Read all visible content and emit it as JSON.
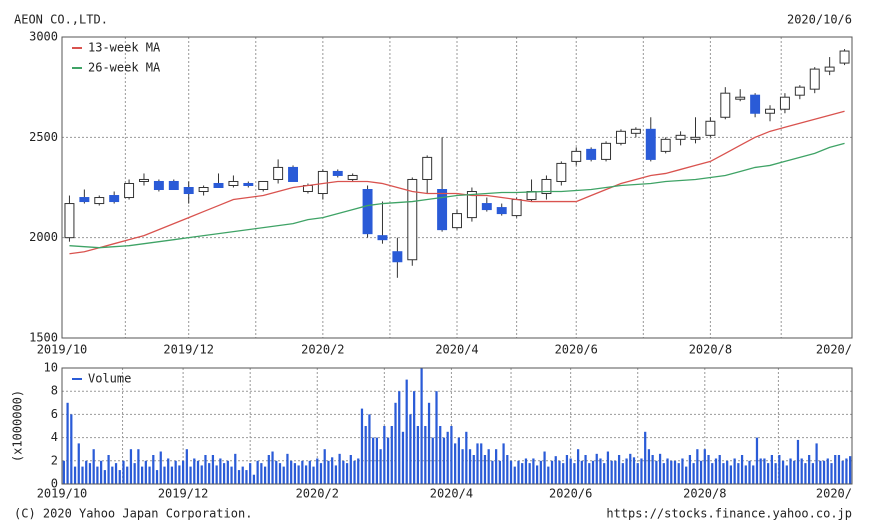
{
  "header": {
    "company": "AEON CO.,LTD.",
    "date": "2020/10/6"
  },
  "footer": {
    "copyright": "(C) 2020 Yahoo Japan Corporation.",
    "url": "https://stocks.finance.yahoo.co.jp"
  },
  "chart_data": [
    {
      "type": "candlestick",
      "categories": [
        "2019/10",
        null,
        null,
        null,
        null,
        null,
        null,
        null,
        "2019/12",
        null,
        null,
        null,
        null,
        null,
        null,
        null,
        null,
        "2020/2",
        null,
        null,
        null,
        null,
        null,
        null,
        null,
        null,
        "2020/4",
        null,
        null,
        null,
        null,
        null,
        null,
        null,
        "2020/6",
        null,
        null,
        null,
        null,
        null,
        null,
        null,
        null,
        "2020/8",
        null,
        null,
        null,
        null,
        null,
        null,
        null,
        null,
        "2020/"
      ],
      "open": [
        2000,
        2200,
        2170,
        2210,
        2200,
        2280,
        2280,
        2280,
        2250,
        2230,
        2270,
        2260,
        2270,
        2240,
        2290,
        2350,
        2230,
        2220,
        2330,
        2290,
        2240,
        2010,
        1930,
        1890,
        2290,
        2240,
        2050,
        2100,
        2170,
        2150,
        2110,
        2190,
        2220,
        2280,
        2380,
        2440,
        2390,
        2470,
        2520,
        2540,
        2430,
        2490,
        2490,
        2510,
        2600,
        2690,
        2710,
        2620,
        2640,
        2710,
        2740,
        2830,
        2870
      ],
      "high": [
        2210,
        2240,
        2210,
        2230,
        2290,
        2320,
        2290,
        2290,
        2280,
        2260,
        2320,
        2310,
        2280,
        2280,
        2390,
        2360,
        2270,
        2340,
        2340,
        2320,
        2260,
        2180,
        2000,
        2300,
        2410,
        2500,
        2140,
        2250,
        2200,
        2170,
        2200,
        2290,
        2310,
        2380,
        2450,
        2450,
        2480,
        2540,
        2550,
        2600,
        2500,
        2530,
        2600,
        2600,
        2750,
        2740,
        2720,
        2660,
        2720,
        2760,
        2850,
        2900,
        2940
      ],
      "low": [
        1980,
        2170,
        2160,
        2170,
        2190,
        2260,
        2230,
        2240,
        2170,
        2210,
        2250,
        2250,
        2250,
        2230,
        2270,
        2280,
        2220,
        2190,
        2300,
        2280,
        2000,
        1970,
        1800,
        1860,
        2220,
        2030,
        2040,
        2080,
        2130,
        2110,
        2100,
        2180,
        2190,
        2260,
        2360,
        2380,
        2380,
        2460,
        2500,
        2380,
        2420,
        2460,
        2470,
        2500,
        2590,
        2680,
        2600,
        2580,
        2620,
        2690,
        2720,
        2810,
        2860
      ],
      "close": [
        2170,
        2180,
        2200,
        2180,
        2270,
        2290,
        2240,
        2240,
        2220,
        2250,
        2250,
        2280,
        2260,
        2280,
        2350,
        2280,
        2260,
        2330,
        2310,
        2310,
        2020,
        1990,
        1880,
        2290,
        2400,
        2040,
        2120,
        2230,
        2140,
        2120,
        2190,
        2230,
        2290,
        2370,
        2430,
        2390,
        2470,
        2530,
        2540,
        2390,
        2490,
        2510,
        2500,
        2580,
        2720,
        2700,
        2620,
        2640,
        2700,
        2750,
        2840,
        2850,
        2930
      ],
      "up_color": "#ffffff",
      "down_color": "#2a5bd7",
      "outline_color": "#333333",
      "series": [
        {
          "name": "13-week MA",
          "color": "#d9534f",
          "values": [
            1920,
            1930,
            1950,
            1970,
            1990,
            2010,
            2040,
            2070,
            2100,
            2130,
            2160,
            2190,
            2200,
            2210,
            2230,
            2250,
            2260,
            2270,
            2280,
            2280,
            2280,
            2270,
            2250,
            2230,
            2220,
            2220,
            2220,
            2210,
            2210,
            2200,
            2190,
            2180,
            2180,
            2180,
            2180,
            2210,
            2240,
            2270,
            2290,
            2310,
            2320,
            2340,
            2360,
            2380,
            2420,
            2460,
            2500,
            2530,
            2550,
            2570,
            2590,
            2610,
            2630
          ]
        },
        {
          "name": "26-week MA",
          "color": "#3fa366",
          "values": [
            1960,
            1955,
            1950,
            1955,
            1960,
            1970,
            1980,
            1990,
            2000,
            2010,
            2020,
            2030,
            2040,
            2050,
            2060,
            2070,
            2090,
            2100,
            2120,
            2140,
            2160,
            2170,
            2175,
            2180,
            2190,
            2200,
            2210,
            2215,
            2220,
            2225,
            2225,
            2228,
            2230,
            2230,
            2235,
            2240,
            2250,
            2260,
            2265,
            2270,
            2280,
            2285,
            2290,
            2300,
            2310,
            2330,
            2350,
            2360,
            2380,
            2400,
            2420,
            2450,
            2470
          ]
        }
      ],
      "ylim": [
        1500,
        3000
      ],
      "yticks": [
        1500,
        2000,
        2500,
        3000
      ],
      "grid": true
    },
    {
      "type": "bar",
      "categories": [
        "2019/10",
        null,
        null,
        null,
        null,
        null,
        null,
        null,
        null,
        null,
        null,
        null,
        null,
        null,
        null,
        null,
        null,
        null,
        null,
        null,
        null,
        null,
        null,
        null,
        null,
        null,
        null,
        null,
        null,
        null,
        null,
        null,
        "2019/12",
        null,
        null,
        null,
        null,
        null,
        null,
        null,
        null,
        null,
        null,
        null,
        null,
        null,
        null,
        null,
        null,
        null,
        null,
        null,
        null,
        null,
        null,
        null,
        null,
        null,
        null,
        null,
        null,
        null,
        null,
        null,
        null,
        null,
        null,
        null,
        "2020/2",
        null,
        null,
        null,
        null,
        null,
        null,
        null,
        null,
        null,
        null,
        null,
        null,
        null,
        null,
        null,
        null,
        null,
        null,
        null,
        null,
        null,
        null,
        null,
        null,
        null,
        null,
        null,
        null,
        null,
        null,
        null,
        null,
        null,
        null,
        null,
        "2020/4",
        null,
        null,
        null,
        null,
        null,
        null,
        null,
        null,
        null,
        null,
        null,
        null,
        null,
        null,
        null,
        null,
        null,
        null,
        null,
        null,
        null,
        null,
        null,
        null,
        null,
        null,
        null,
        null,
        null,
        null,
        null,
        "2020/6",
        null,
        null,
        null,
        null,
        null,
        null,
        null,
        null,
        null,
        null,
        null,
        null,
        null,
        null,
        null,
        null,
        null,
        null,
        null,
        null,
        null,
        null,
        null,
        null,
        null,
        null,
        null,
        null,
        null,
        null,
        null,
        null,
        null,
        null,
        null,
        "2020/8",
        null,
        null,
        null,
        null,
        null,
        null,
        null,
        null,
        null,
        null,
        null,
        null,
        null,
        null,
        null,
        null,
        null,
        null,
        null,
        null,
        null,
        null,
        null,
        null,
        null,
        null,
        null,
        null,
        null,
        null,
        null,
        null,
        null,
        null,
        null,
        "2020/",
        null,
        null,
        null
      ],
      "series": [
        {
          "name": "Volume",
          "color": "#2a5bd7",
          "values": [
            2,
            7,
            6,
            1.5,
            3.5,
            1.5,
            2,
            1.8,
            3,
            1.5,
            2,
            1.2,
            2.5,
            1.5,
            1.8,
            1.2,
            2,
            1.5,
            3,
            1.8,
            3,
            1.5,
            2,
            1.5,
            2.5,
            1.2,
            2.8,
            1.5,
            2.2,
            1.5,
            2,
            1.6,
            2,
            3,
            1.5,
            2.2,
            2,
            1.6,
            2.5,
            1.8,
            2.5,
            1.6,
            2.2,
            1.8,
            2,
            1.5,
            2.6,
            1.2,
            1.5,
            1.2,
            1.8,
            0.8,
            2,
            1.8,
            1.5,
            2.5,
            2.8,
            2,
            1.8,
            1.5,
            2.6,
            2,
            1.8,
            1.6,
            2,
            1.6,
            2,
            1.5,
            2.2,
            1.8,
            3,
            2,
            2.3,
            1.6,
            2.6,
            2,
            1.8,
            2.5,
            2,
            2.2,
            6.5,
            5,
            6,
            4,
            4,
            3,
            5,
            4,
            5,
            7,
            8,
            4.5,
            9,
            6,
            8,
            5,
            10,
            5,
            7,
            4,
            8,
            5,
            4,
            4.5,
            5,
            3.5,
            4,
            3,
            4.5,
            3,
            2.5,
            3.5,
            3.5,
            2.5,
            3,
            2,
            3,
            2,
            3.5,
            2.5,
            2,
            1.5,
            2,
            1.8,
            2.2,
            1.8,
            2.2,
            1.6,
            2,
            2.8,
            1.5,
            2,
            2.4,
            2,
            1.8,
            2.5,
            2.2,
            1.8,
            3,
            2,
            2.5,
            1.8,
            2,
            2.6,
            2.2,
            1.8,
            2.8,
            2,
            2,
            2.5,
            1.8,
            2.2,
            2.6,
            2.3,
            1.8,
            2.2,
            4.5,
            3,
            2.5,
            2,
            2.6,
            1.8,
            2.2,
            2,
            2,
            1.8,
            2.2,
            1.5,
            2.5,
            1.8,
            3,
            2,
            3,
            2.5,
            1.8,
            2.2,
            2.5,
            1.8,
            2,
            1.6,
            2.2,
            1.8,
            2.5,
            1.6,
            2,
            1.6,
            4,
            2.2,
            2.2,
            1.8,
            2.5,
            1.8,
            2.5,
            2,
            1.6,
            2.2,
            2,
            3.8,
            2.2,
            1.8,
            2.5,
            1.8,
            3.5,
            2,
            2,
            2.2,
            1.8,
            2.5,
            2.5,
            2,
            2.2,
            2.4
          ]
        }
      ],
      "ylabel": "(x1000000)",
      "ylim": [
        0,
        10
      ],
      "yticks": [
        0,
        2,
        4,
        6,
        8,
        10
      ],
      "grid": true
    }
  ]
}
